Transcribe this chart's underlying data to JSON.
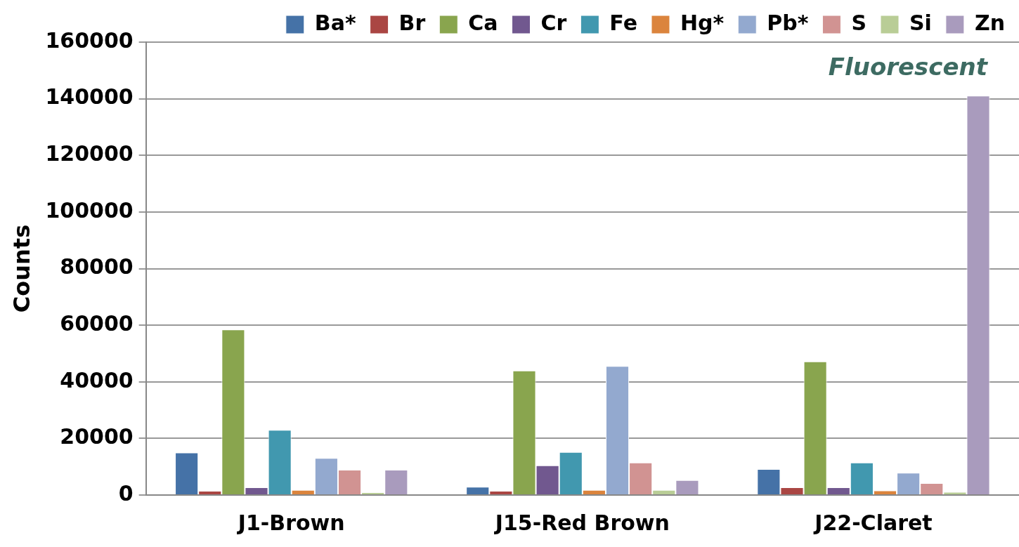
{
  "chart_data": {
    "type": "bar",
    "ylabel": "Counts",
    "categories": [
      "J1-Brown",
      "J15-Red Brown",
      "J22-Claret"
    ],
    "series": [
      {
        "name": "Ba*",
        "color": "#4572a7",
        "values": [
          15000,
          2900,
          9200
        ]
      },
      {
        "name": "Br",
        "color": "#aa4643",
        "values": [
          1500,
          1500,
          2700
        ]
      },
      {
        "name": "Ca",
        "color": "#89a54e",
        "values": [
          58500,
          44000,
          47200
        ]
      },
      {
        "name": "Cr",
        "color": "#71588f",
        "values": [
          2700,
          10500,
          2700
        ]
      },
      {
        "name": "Fe",
        "color": "#4198af",
        "values": [
          23000,
          15200,
          11500
        ]
      },
      {
        "name": "Hg*",
        "color": "#db843d",
        "values": [
          1800,
          1800,
          1600
        ]
      },
      {
        "name": "Pb*",
        "color": "#93a9cf",
        "values": [
          13100,
          45600,
          7900
        ]
      },
      {
        "name": "S",
        "color": "#d19392",
        "values": [
          8900,
          11500,
          4200
        ]
      },
      {
        "name": "Si",
        "color": "#b9cd96",
        "values": [
          1000,
          1800,
          1100
        ]
      },
      {
        "name": "Zn",
        "color": "#a99bbd",
        "values": [
          8900,
          5300,
          141100
        ]
      }
    ],
    "ylim": [
      0,
      160000
    ],
    "yticks": [
      0,
      20000,
      40000,
      60000,
      80000,
      100000,
      120000,
      140000,
      160000
    ],
    "grid": "y",
    "legend": "top",
    "annotations": [
      "Fluorescent"
    ]
  }
}
